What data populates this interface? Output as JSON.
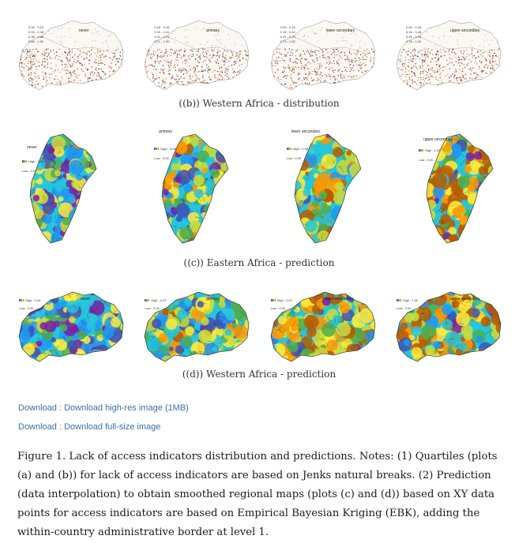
{
  "figure": {
    "row_b": {
      "caption": "((b)) Western Africa - distribution",
      "panels": [
        {
          "title": "never",
          "legend": [
            "0.00 - 0.15",
            "0.15 - 0.38",
            "0.38 - 0.68",
            "0.68 - 1.00"
          ]
        },
        {
          "title": "primary",
          "legend": [
            "0.00 - 0.16",
            "0.16 - 0.41",
            "0.41 - 0.71",
            "0.71 - 1.00"
          ]
        },
        {
          "title": "lower secondary",
          "legend": [
            "0.00 - 0.15",
            "0.15 - 0.42",
            "0.42 - 0.73",
            "0.73 - 1.00"
          ]
        },
        {
          "title": "upper secondary",
          "legend": [
            "0.00 - 0.18",
            "0.18 - 0.46",
            "0.46 - 0.78",
            "0.78 - 1.00"
          ]
        }
      ]
    },
    "row_c": {
      "caption": "((c)) Eastern Africa - prediction",
      "panels": [
        {
          "title": "never",
          "high": "High : 0.95",
          "low": "Low : 0.00"
        },
        {
          "title": "primary",
          "high": "High : 0.98",
          "low": "Low : 0.00"
        },
        {
          "title": "lower secondary",
          "high": "High : 0.98",
          "low": "Low : 0.00"
        },
        {
          "title": "upper secondary",
          "high": "High : 1.00",
          "low": "Low : 0.00"
        }
      ]
    },
    "row_d": {
      "caption": "((d)) Western Africa - prediction",
      "panels": [
        {
          "title": "never",
          "high": "High : 0.94",
          "low": "Low : 0.00"
        },
        {
          "title": "primary",
          "high": "High : 0.97",
          "low": "Low : 0.00"
        },
        {
          "title": "lower secondary",
          "high": "High : 0.97",
          "low": "Low : 0.00"
        },
        {
          "title": "upper secondary",
          "high": "High : 1.00",
          "low": "Low : 0.00"
        }
      ]
    }
  },
  "downloads": {
    "high_res": "Download : Download high-res image (1MB)",
    "full_size": "Download : Download full-size image"
  },
  "caption": "Figure 1. Lack of access indicators distribution and predictions. Notes: (1) Quartiles (plots (a) and (b)) for lack of access indicators are based on Jenks natural breaks. (2) Prediction (data interpolation) to obtain smoothed regional maps (plots (c) and (d)) based on XY data points for access indicators are based on Empirical Bayesian Kriging (EBK), adding the within-country administrative border at level 1.",
  "colors": {
    "link": "#3a6ea5",
    "rainbow": [
      "#7b1fa2",
      "#3f51b5",
      "#2196f3",
      "#26c6da",
      "#4caf50",
      "#cddc39",
      "#ffeb3b",
      "#ff9800",
      "#b85c00"
    ],
    "dots": [
      "#c0392b",
      "#e67e22",
      "#7f8c8d",
      "#2c3e50"
    ]
  }
}
